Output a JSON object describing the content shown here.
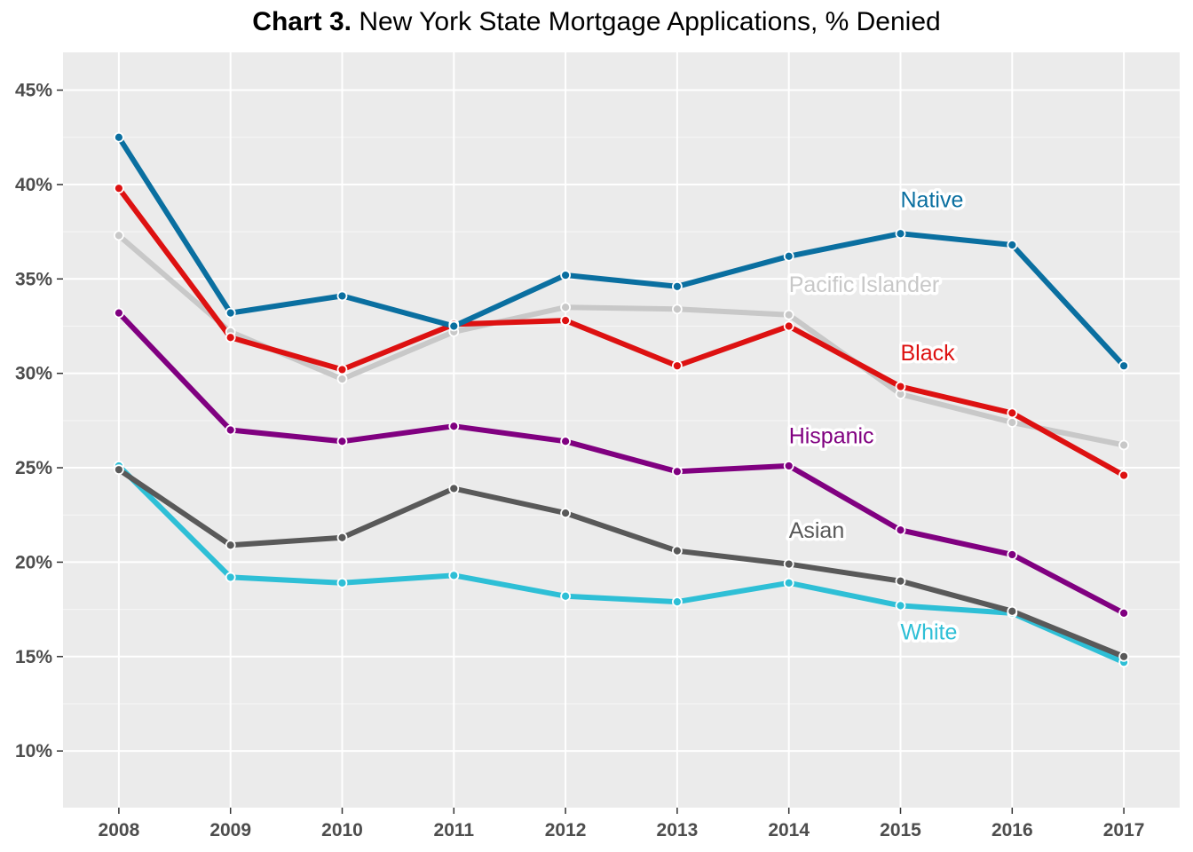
{
  "title_prefix": "Chart 3.",
  "title_main": "New York State Mortgage Applications, % Denied",
  "chart_data": {
    "type": "line",
    "title": "Chart 3. New York State Mortgage Applications, % Denied",
    "xlabel": "",
    "ylabel": "",
    "x": [
      2008,
      2009,
      2010,
      2011,
      2012,
      2013,
      2014,
      2015,
      2016,
      2017
    ],
    "ylim": [
      7,
      47
    ],
    "yticks": [
      10,
      15,
      20,
      25,
      30,
      35,
      40,
      45
    ],
    "ytick_labels": [
      "10%",
      "15%",
      "20%",
      "25%",
      "30%",
      "35%",
      "40%",
      "45%"
    ],
    "xtick_labels": [
      "2008",
      "2009",
      "2010",
      "2011",
      "2012",
      "2013",
      "2014",
      "2015",
      "2016",
      "2017"
    ],
    "grid": true,
    "legend": "direct labels on lines",
    "series": [
      {
        "name": "White",
        "color": "#2ebfd6",
        "label_at": {
          "x": 2015,
          "y": 15.9
        },
        "values": [
          25.1,
          19.2,
          18.9,
          19.3,
          18.2,
          17.9,
          18.9,
          17.7,
          17.3,
          14.7
        ]
      },
      {
        "name": "Asian",
        "color": "#595959",
        "label_at": {
          "x": 2014,
          "y": 21.3
        },
        "values": [
          24.9,
          20.9,
          21.3,
          23.9,
          22.6,
          20.6,
          19.9,
          19.0,
          17.4,
          15.0
        ]
      },
      {
        "name": "Hispanic",
        "color": "#800080",
        "label_at": {
          "x": 2014,
          "y": 26.3
        },
        "values": [
          33.2,
          27.0,
          26.4,
          27.2,
          26.4,
          24.8,
          25.1,
          21.7,
          20.4,
          17.3
        ]
      },
      {
        "name": "Pacific Islander",
        "color": "#c8c8c8",
        "label_at": {
          "x": 2014,
          "y": 34.3
        },
        "values": [
          37.3,
          32.2,
          29.7,
          32.2,
          33.5,
          33.4,
          33.1,
          28.9,
          27.4,
          26.2
        ]
      },
      {
        "name": "Black",
        "color": "#dd1111",
        "label_at": {
          "x": 2015,
          "y": 30.7
        },
        "values": [
          39.8,
          31.9,
          30.2,
          32.6,
          32.8,
          30.4,
          32.5,
          29.3,
          27.9,
          24.6
        ]
      },
      {
        "name": "Native",
        "color": "#0a6fa0",
        "label_at": {
          "x": 2015,
          "y": 38.8
        },
        "values": [
          42.5,
          33.2,
          34.1,
          32.5,
          35.2,
          34.6,
          36.2,
          37.4,
          36.8,
          30.4
        ]
      }
    ]
  }
}
